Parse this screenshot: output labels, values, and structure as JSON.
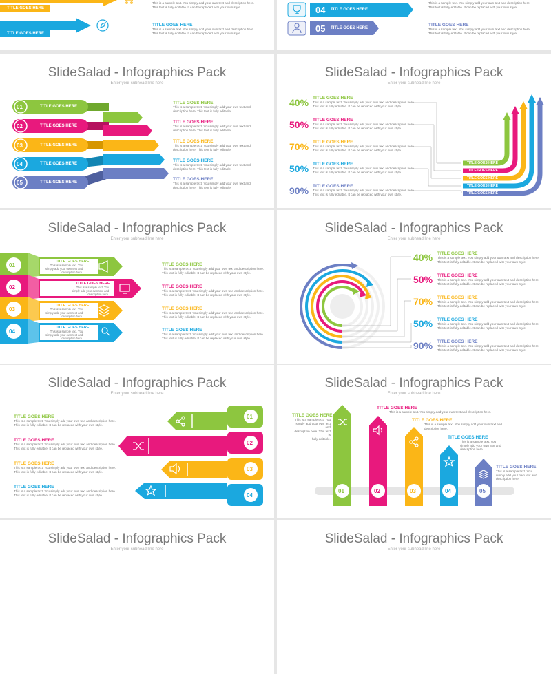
{
  "common": {
    "title": "SlideSalad - Infographics Pack",
    "subhead": "Enter your subhead line here",
    "item_title": "TITLE GOES HERE",
    "desc_line1": "This is a sample text. You simply add your own text and description here.",
    "desc_line2": "This text is fully editable. It can be replaced with your own style.",
    "desc_short1": "This is a sample text. You simply add your own text and",
    "desc_short2": "description here. This text is fully editable.",
    "desc_box1": "This is a sample text. You",
    "desc_box2": "simply add your own text and",
    "desc_box3": "description here.",
    "desc_col1": "This is a sample text. You",
    "desc_col2": "simply add your own text and",
    "desc_col3": "description here. This text is",
    "desc_col4": "fully editable."
  },
  "numbers": [
    "01",
    "02",
    "03",
    "04",
    "05"
  ],
  "percents": [
    "40%",
    "50%",
    "70%",
    "50%",
    "90%"
  ],
  "colors": {
    "green": "#8dc63f",
    "magenta": "#e8197d",
    "yellow": "#fbb617",
    "blue": "#1ba8df",
    "purple": "#6c7fc4",
    "title_grey": "#7a7a7a"
  },
  "icons": {
    "slide1": [
      "cart-icon",
      "compass-icon"
    ],
    "slide2": [
      "trophy-icon",
      "person-icon"
    ],
    "slide5": [
      "megaphone-icon",
      "monitor-icon",
      "stack-icon",
      "search-icon"
    ],
    "slide7": [
      "share-icon",
      "shuffle-icon",
      "speaker-icon",
      "star-icon"
    ],
    "slide8": [
      "shuffle-icon",
      "speaker-icon",
      "share-icon",
      "star-icon",
      "stack-icon"
    ]
  }
}
